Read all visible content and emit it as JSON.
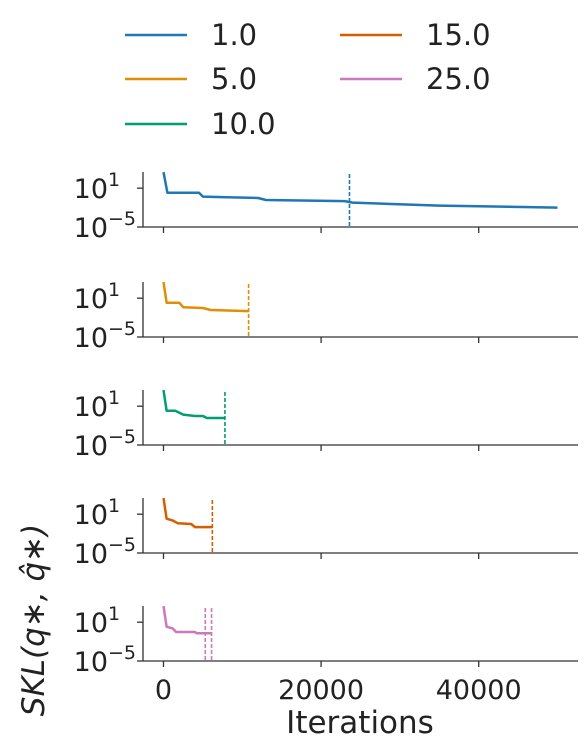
{
  "chart_data": {
    "type": "line",
    "xlabel": "Iterations",
    "ylabel": "SKL(q∗, q̂∗)",
    "xlim": [
      -2600,
      52600
    ],
    "x_ticks": [
      0,
      20000,
      40000
    ],
    "x_tick_labels": [
      "0",
      "20000",
      "40000"
    ],
    "y_scale": "log",
    "y_ticks": [
      {
        "base": "10",
        "exp": "1",
        "value": 10
      },
      {
        "base": "10",
        "exp": "−5",
        "value": 1e-05
      }
    ],
    "ylim_exp": [
      -5,
      3.5
    ],
    "legend": {
      "placement": "top",
      "columns": 2,
      "entries": [
        "1.0",
        "5.0",
        "10.0",
        "15.0",
        "25.0"
      ]
    },
    "grid": false,
    "series": [
      {
        "name": "1.0",
        "color": "#1f77b4",
        "points": [
          [
            0,
            3000
          ],
          [
            500,
            2
          ],
          [
            4500,
            2
          ],
          [
            5000,
            0.5
          ],
          [
            8000,
            0.4
          ],
          [
            12000,
            0.3
          ],
          [
            13000,
            0.15
          ],
          [
            23000,
            0.1
          ],
          [
            24000,
            0.06
          ],
          [
            28000,
            0.04
          ],
          [
            35000,
            0.02
          ],
          [
            50000,
            0.01
          ]
        ],
        "vlines": [
          23600
        ]
      },
      {
        "name": "5.0",
        "color": "#de8f05",
        "points": [
          [
            0,
            3000
          ],
          [
            400,
            2
          ],
          [
            2000,
            2
          ],
          [
            2500,
            0.4
          ],
          [
            5000,
            0.3
          ],
          [
            6000,
            0.15
          ],
          [
            10800,
            0.1
          ]
        ],
        "vlines": [
          10800
        ]
      },
      {
        "name": "10.0",
        "color": "#029e73",
        "points": [
          [
            0,
            3000
          ],
          [
            400,
            2
          ],
          [
            1500,
            2
          ],
          [
            2500,
            0.5
          ],
          [
            4000,
            0.3
          ],
          [
            5000,
            0.3
          ],
          [
            5500,
            0.15
          ],
          [
            7800,
            0.15
          ]
        ],
        "vlines": [
          7800
        ]
      },
      {
        "name": "15.0",
        "color": "#d55e00",
        "points": [
          [
            0,
            3000
          ],
          [
            400,
            2
          ],
          [
            1200,
            1
          ],
          [
            1800,
            0.4
          ],
          [
            3500,
            0.3
          ],
          [
            4000,
            0.1
          ],
          [
            6200,
            0.1
          ]
        ],
        "vlines": [
          6200
        ]
      },
      {
        "name": "25.0",
        "color": "#cc78bc",
        "points": [
          [
            0,
            3000
          ],
          [
            400,
            2
          ],
          [
            1200,
            1
          ],
          [
            1600,
            0.3
          ],
          [
            4000,
            0.3
          ],
          [
            4200,
            0.2
          ],
          [
            6100,
            0.2
          ]
        ],
        "vlines": [
          5300,
          6100
        ]
      }
    ]
  }
}
